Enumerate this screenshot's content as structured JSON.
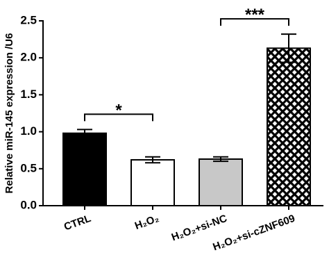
{
  "chart_data": {
    "type": "bar",
    "y_label": "Relative miR-145 expression /U6",
    "categories": [
      "CTRL",
      "H₂O₂",
      "H₂O₂+si-NC",
      "H₂O₂+si-cZNF609"
    ],
    "values": [
      0.98,
      0.62,
      0.63,
      2.13
    ],
    "errors": [
      0.05,
      0.04,
      0.03,
      0.19
    ],
    "colors": [
      "#000000",
      "#ffffff",
      "#c8c8c8",
      "#ffffff"
    ],
    "hatched": [
      false,
      false,
      false,
      true
    ],
    "ylim": [
      0,
      2.5
    ],
    "yticks": [
      {
        "value": 0,
        "label": "0.0"
      },
      0.5,
      {
        "value": 1,
        "label": "1.0"
      },
      1.5,
      {
        "value": 2,
        "label": "2.0"
      },
      2.5
    ],
    "annotations": [
      {
        "text": "*",
        "between": [
          "CTRL",
          "H₂O₂"
        ]
      },
      {
        "text": "***",
        "between": [
          "H₂O₂+si-NC",
          "H₂O₂+si-cZNF609"
        ]
      }
    ]
  }
}
